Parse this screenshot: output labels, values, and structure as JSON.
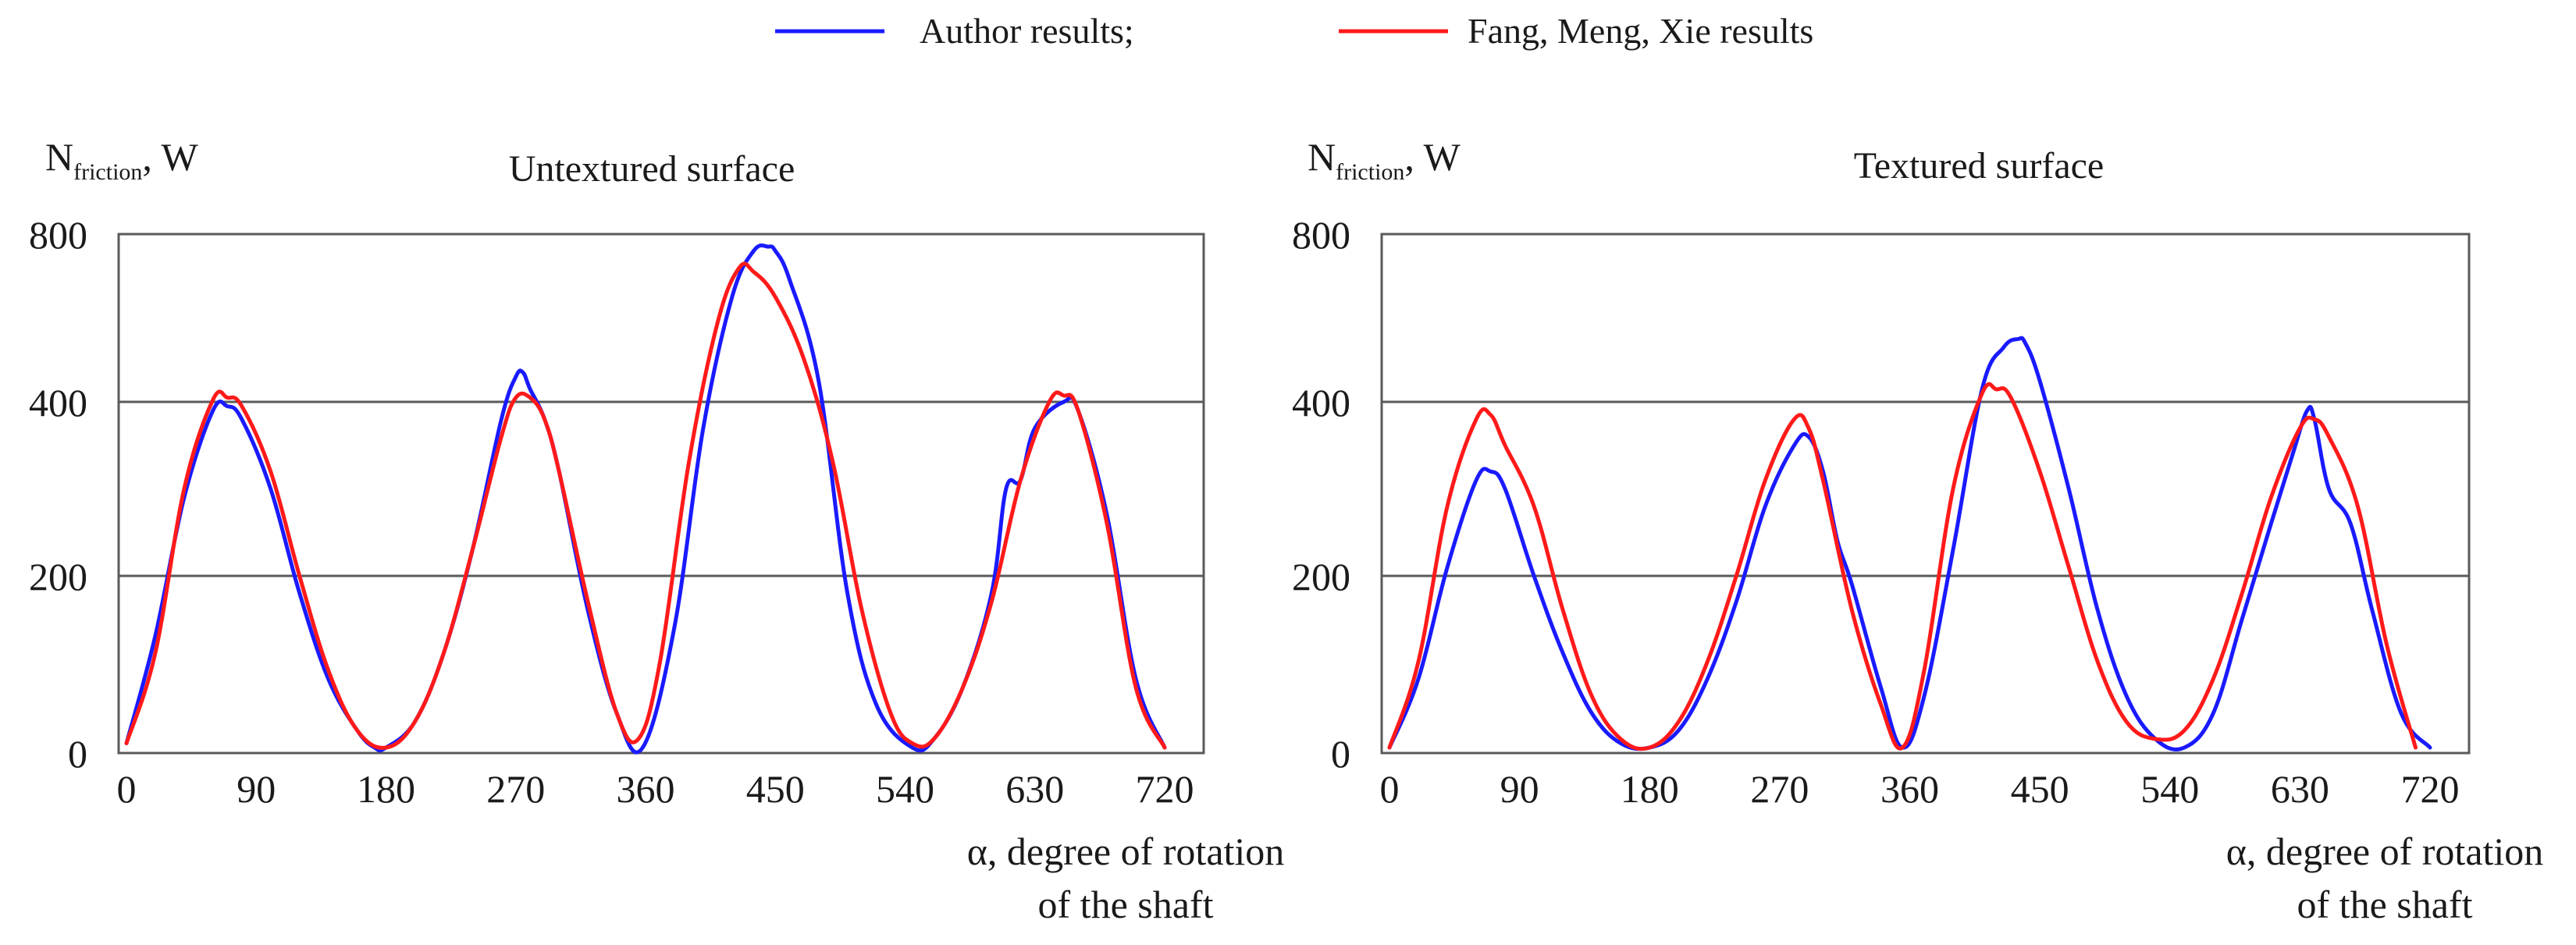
{
  "legend": {
    "entries": [
      {
        "label": "Author results;",
        "color": "#1a1aff"
      },
      {
        "label": "Fang, Meng, Xie results",
        "color": "#ff1a1a"
      }
    ]
  },
  "chart_data": [
    {
      "type": "line",
      "title": "Untextured surface",
      "ylabel_main": "N",
      "ylabel_sub": "friction",
      "ylabel_unit": ", W",
      "xlabel_line1": "α, degree of rotation",
      "xlabel_line2": "of the shaft",
      "xlim": [
        0,
        720
      ],
      "y_ticks": [
        0,
        200,
        400,
        800
      ],
      "x_ticks": [
        0,
        90,
        180,
        270,
        360,
        450,
        540,
        630,
        720
      ],
      "y_tick_labels": [
        "0",
        "200",
        "400",
        "800"
      ],
      "x_tick_labels": [
        "0",
        "90",
        "180",
        "270",
        "360",
        "450",
        "540",
        "630",
        "720"
      ],
      "gridlines_y": [
        200,
        400
      ],
      "series": [
        {
          "name": "Author results",
          "color": "#1a1aff",
          "x": [
            0,
            20,
            40,
            60,
            70,
            80,
            100,
            120,
            140,
            160,
            172,
            180,
            200,
            220,
            240,
            260,
            270,
            275,
            280,
            290,
            300,
            320,
            340,
            358,
            380,
            400,
            420,
            435,
            445,
            450,
            460,
            480,
            500,
            520,
            545,
            560,
            580,
            600,
            610,
            620,
            630,
            650,
            660,
            680,
            700,
            720
          ],
          "y": [
            5,
            130,
            290,
            390,
            395,
            380,
            300,
            180,
            80,
            20,
            0,
            0,
            30,
            110,
            230,
            380,
            460,
            470,
            430,
            380,
            320,
            160,
            40,
            0,
            140,
            370,
            650,
            760,
            770,
            760,
            690,
            450,
            180,
            50,
            0,
            10,
            70,
            180,
            300,
            310,
            370,
            400,
            390,
            270,
            80,
            0
          ]
        },
        {
          "name": "Fang, Meng, Xie results",
          "color": "#ff1a1a",
          "x": [
            0,
            20,
            40,
            60,
            70,
            80,
            100,
            120,
            140,
            160,
            180,
            200,
            220,
            240,
            260,
            270,
            280,
            290,
            300,
            320,
            340,
            355,
            370,
            390,
            410,
            425,
            435,
            450,
            470,
            490,
            510,
            530,
            545,
            560,
            580,
            600,
            620,
            640,
            650,
            660,
            680,
            700,
            720
          ],
          "y": [
            5,
            110,
            300,
            405,
            410,
            395,
            320,
            200,
            90,
            20,
            0,
            30,
            110,
            230,
            360,
            410,
            410,
            380,
            320,
            170,
            40,
            10,
            100,
            330,
            590,
            720,
            710,
            650,
            500,
            330,
            160,
            40,
            5,
            10,
            70,
            170,
            310,
            400,
            415,
            390,
            260,
            70,
            0
          ]
        }
      ]
    },
    {
      "type": "line",
      "title": "Textured surface",
      "ylabel_main": "N",
      "ylabel_sub": "friction",
      "ylabel_unit": ", W",
      "xlabel_line1": "α, degree of rotation",
      "xlabel_line2": "of the shaft",
      "xlim": [
        0,
        720
      ],
      "y_ticks": [
        0,
        200,
        400,
        800
      ],
      "x_ticks": [
        0,
        90,
        180,
        270,
        360,
        450,
        540,
        630,
        720
      ],
      "y_tick_labels": [
        "0",
        "200",
        "400",
        "800"
      ],
      "x_tick_labels": [
        "0",
        "90",
        "180",
        "270",
        "360",
        "450",
        "540",
        "630",
        "720"
      ],
      "gridlines_y": [
        200,
        400
      ],
      "series": [
        {
          "name": "Author results",
          "color": "#1a1aff",
          "x": [
            0,
            20,
            40,
            60,
            70,
            80,
            100,
            120,
            140,
            160,
            180,
            200,
            220,
            240,
            260,
            280,
            290,
            300,
            310,
            320,
            340,
            355,
            370,
            390,
            410,
            425,
            435,
            440,
            450,
            470,
            490,
            510,
            530,
            550,
            570,
            590,
            610,
            625,
            635,
            640,
            650,
            665,
            680,
            700,
            720
          ],
          "y": [
            0,
            80,
            210,
            310,
            320,
            300,
            200,
            110,
            40,
            5,
            0,
            20,
            80,
            170,
            280,
            350,
            360,
            320,
            240,
            190,
            70,
            0,
            60,
            230,
            430,
            530,
            550,
            540,
            450,
            300,
            160,
            60,
            10,
            0,
            40,
            150,
            260,
            340,
            390,
            380,
            300,
            260,
            160,
            40,
            0
          ]
        },
        {
          "name": "Fang, Meng, Xie results",
          "color": "#ff1a1a",
          "x": [
            0,
            20,
            40,
            60,
            70,
            80,
            100,
            120,
            140,
            160,
            180,
            200,
            220,
            240,
            260,
            280,
            290,
            300,
            320,
            340,
            355,
            370,
            390,
            410,
            420,
            430,
            450,
            470,
            490,
            510,
            530,
            550,
            570,
            590,
            610,
            630,
            640,
            650,
            670,
            690,
            710
          ],
          "y": [
            0,
            100,
            280,
            380,
            385,
            350,
            280,
            160,
            60,
            10,
            0,
            30,
            100,
            200,
            310,
            380,
            370,
            310,
            160,
            50,
            0,
            90,
            300,
            420,
            430,
            410,
            320,
            210,
            100,
            30,
            10,
            20,
            80,
            180,
            290,
            370,
            380,
            360,
            280,
            120,
            0
          ]
        }
      ]
    }
  ]
}
